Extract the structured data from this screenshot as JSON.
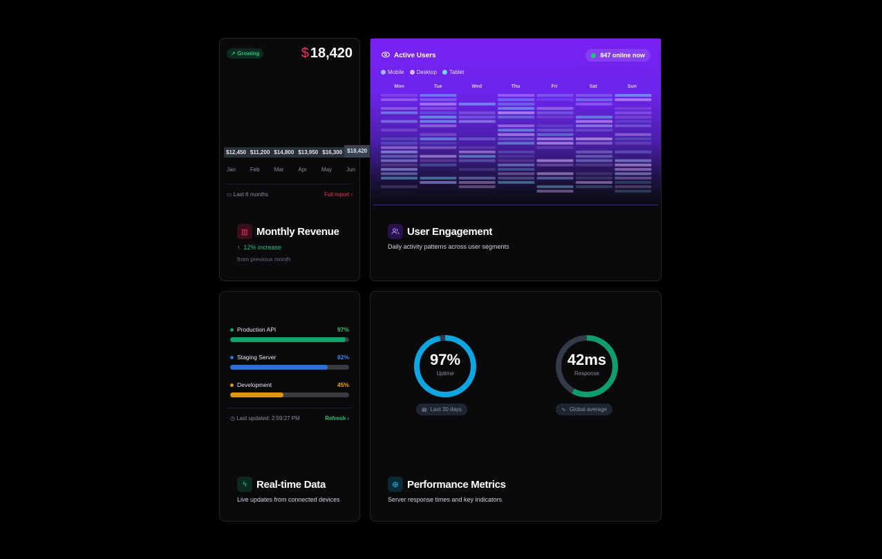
{
  "revenue": {
    "badge": "Growing",
    "currency": "$",
    "value": "18,420",
    "bar_labels": [
      "$12,450",
      "$11,200",
      "$14,800",
      "$13,950",
      "$16,300",
      "$18,420"
    ],
    "months": [
      "Jan",
      "Feb",
      "Mar",
      "Apr",
      "May",
      "Jun"
    ],
    "period": "Last 6 months",
    "report_link": "Full report",
    "title": "Monthly Revenue",
    "change": "12% increase",
    "change_note": "from previous month",
    "accent": "#f0355b"
  },
  "engagement": {
    "header": "Active Users",
    "online": "847 online now",
    "legend": [
      {
        "label": "Mobile",
        "color": "#a5b4fc"
      },
      {
        "label": "Desktop",
        "color": "#d8b4fe"
      },
      {
        "label": "Tablet",
        "color": "#7dd3fc"
      }
    ],
    "days": [
      "Mon",
      "Tue",
      "Wed",
      "Thu",
      "Fri",
      "Sat",
      "Sun"
    ],
    "title": "User Engagement",
    "subtitle": "Daily activity patterns across user segments"
  },
  "realtime": {
    "servers": [
      {
        "name": "Production API",
        "percent": 97,
        "label": "97%",
        "color": "#10a36b",
        "text_color": "#22c37a"
      },
      {
        "name": "Staging Server",
        "percent": 82,
        "label": "82%",
        "color": "#2f6fd6",
        "text_color": "#3b82f6"
      },
      {
        "name": "Development",
        "percent": 45,
        "label": "45%",
        "color": "#e0950f",
        "text_color": "#f59e0b"
      }
    ],
    "last_updated": "Last updated: 2:59:27 PM",
    "refresh": "Refresh",
    "title": "Real-time Data",
    "subtitle": "Live updates from connected devices"
  },
  "performance": {
    "uptime": {
      "value": "97%",
      "label": "Uptime",
      "fraction": 0.97,
      "color": "#0ea5e0",
      "pill": "Last 30 days"
    },
    "response": {
      "value": "42ms",
      "label": "Response",
      "fraction": 0.58,
      "color": "#0f9d6e",
      "pill": "Global average"
    },
    "title": "Performance Metrics",
    "subtitle": "Server response times and key indicators"
  }
}
